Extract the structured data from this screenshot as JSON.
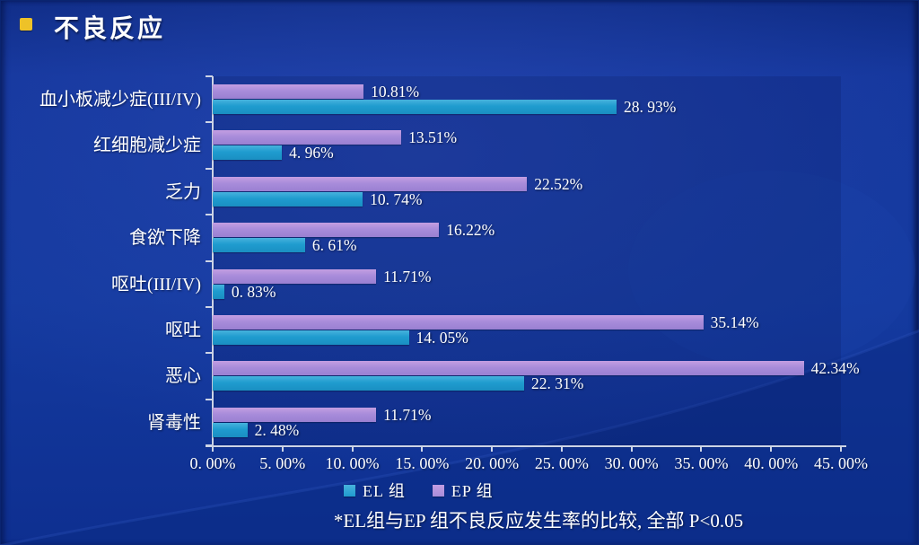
{
  "title": "不良反应",
  "footnote": "*EL组与EP 组不良反应发生率的比较, 全部 P<0.05",
  "colors": {
    "background": "#143a9f",
    "bullet": "#eec228",
    "el_series": "#1f9ccf",
    "ep_series": "#a88cda",
    "axis": "#cdd4e6",
    "text": "#ffffff"
  },
  "chart_data": {
    "type": "bar",
    "orientation": "horizontal",
    "title": "",
    "xlabel": "",
    "ylabel": "",
    "xlim": [
      0,
      45
    ],
    "x_tick_step": 5,
    "x_tick_labels": [
      "0. 00%",
      "5. 00%",
      "10. 00%",
      "15. 00%",
      "20. 00%",
      "25. 00%",
      "30. 00%",
      "35. 00%",
      "40. 00%",
      "45. 00%"
    ],
    "grid": false,
    "legend_position": "bottom",
    "bar_order_top_to_bottom_per_category": [
      "EP 组",
      "EL 组"
    ],
    "categories": [
      "血小板减少症(III/IV)",
      "红细胞减少症",
      "乏力",
      "食欲下降",
      "呕吐(III/IV)",
      "呕吐",
      "恶心",
      "肾毒性"
    ],
    "series": [
      {
        "name": "EL 组",
        "key": "el",
        "values": [
          28.93,
          4.96,
          10.74,
          6.61,
          0.83,
          14.05,
          22.31,
          2.48
        ],
        "data_labels": [
          "28. 93%",
          "4. 96%",
          "10. 74%",
          "6. 61%",
          "0. 83%",
          "14. 05%",
          "22. 31%",
          "2. 48%"
        ]
      },
      {
        "name": "EP 组",
        "key": "ep",
        "values": [
          10.81,
          13.51,
          22.52,
          16.22,
          11.71,
          35.14,
          42.34,
          11.71
        ],
        "data_labels": [
          "10.81%",
          "13.51%",
          "22.52%",
          "16.22%",
          "11.71%",
          "35.14%",
          "42.34%",
          "11.71%"
        ]
      }
    ]
  }
}
